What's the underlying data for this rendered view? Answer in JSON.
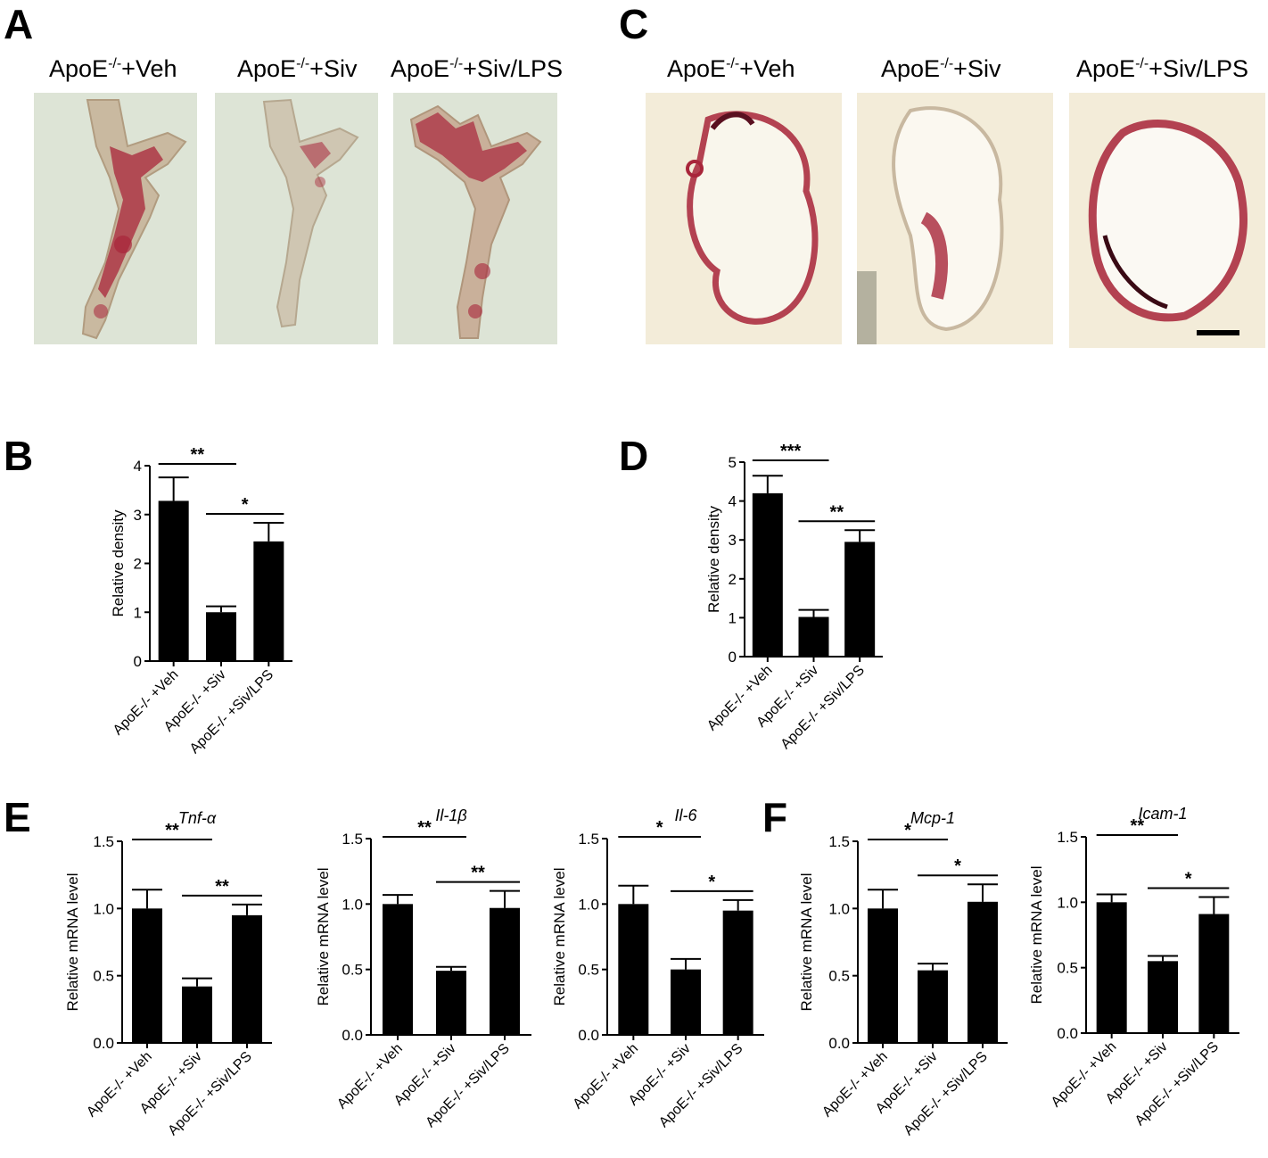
{
  "panel_letters": {
    "A": "A",
    "B": "B",
    "C": "C",
    "D": "D",
    "E": "E",
    "F": "F"
  },
  "image_labels": {
    "prefix": "ApoE",
    "superscript": "-/-",
    "veh": "+Veh",
    "siv": "+Siv",
    "siv_lps": "+Siv/LPS"
  },
  "colors": {
    "bar": "#000000",
    "axis": "#000000",
    "stain": "#a8253a",
    "scale_bar": "#000000"
  },
  "chart_data": [
    {
      "id": "B",
      "type": "bar",
      "title": "",
      "ylabel": "Relative density",
      "ylim": [
        0,
        4
      ],
      "yticks": [
        "0",
        "1",
        "2",
        "3",
        "4"
      ],
      "categories": [
        "ApoE-/- +Veh",
        "ApoE-/- +Siv",
        "ApoE-/- +Siv/LPS"
      ],
      "values": [
        3.28,
        1.0,
        2.45
      ],
      "errors": [
        0.48,
        0.12,
        0.38
      ],
      "significance": [
        {
          "from": 0,
          "to": 1,
          "label": "**"
        },
        {
          "from": 1,
          "to": 2,
          "label": "*"
        }
      ]
    },
    {
      "id": "D",
      "type": "bar",
      "title": "",
      "ylabel": "Relative density",
      "ylim": [
        0,
        5
      ],
      "yticks": [
        "0",
        "1",
        "2",
        "3",
        "4",
        "5"
      ],
      "categories": [
        "ApoE-/- +Veh",
        "ApoE-/- +Siv",
        "ApoE-/- +Siv/LPS"
      ],
      "values": [
        4.2,
        1.02,
        2.95
      ],
      "errors": [
        0.45,
        0.18,
        0.3
      ],
      "significance": [
        {
          "from": 0,
          "to": 1,
          "label": "***"
        },
        {
          "from": 1,
          "to": 2,
          "label": "**"
        }
      ]
    },
    {
      "id": "E1",
      "type": "bar",
      "title": "Tnf-α",
      "ylabel": "Relative mRNA level",
      "ylim": [
        0,
        1.5
      ],
      "yticks": [
        "0.0",
        "0.5",
        "1.0",
        "1.5"
      ],
      "categories": [
        "ApoE-/- +Veh",
        "ApoE-/- +Siv",
        "ApoE-/- +Siv/LPS"
      ],
      "values": [
        1.0,
        0.42,
        0.95
      ],
      "errors": [
        0.14,
        0.06,
        0.08
      ],
      "significance": [
        {
          "from": 0,
          "to": 1,
          "label": "**"
        },
        {
          "from": 1,
          "to": 2,
          "label": "**"
        }
      ]
    },
    {
      "id": "E2",
      "type": "bar",
      "title": "Il-1β",
      "ylabel": "Relative mRNA level",
      "ylim": [
        0,
        1.5
      ],
      "yticks": [
        "0.0",
        "0.5",
        "1.0",
        "1.5"
      ],
      "categories": [
        "ApoE-/- +Veh",
        "ApoE-/- +Siv",
        "ApoE-/- +Siv/LPS"
      ],
      "values": [
        1.0,
        0.49,
        0.97
      ],
      "errors": [
        0.07,
        0.03,
        0.13
      ],
      "significance": [
        {
          "from": 0,
          "to": 1,
          "label": "**"
        },
        {
          "from": 1,
          "to": 2,
          "label": "**"
        }
      ]
    },
    {
      "id": "E3",
      "type": "bar",
      "title": "Il-6",
      "ylabel": "Relative mRNA level",
      "ylim": [
        0,
        1.5
      ],
      "yticks": [
        "0.0",
        "0.5",
        "1.0",
        "1.5"
      ],
      "categories": [
        "ApoE-/- +Veh",
        "ApoE-/- +Siv",
        "ApoE-/- +Siv/LPS"
      ],
      "values": [
        1.0,
        0.5,
        0.95
      ],
      "errors": [
        0.14,
        0.08,
        0.08
      ],
      "significance": [
        {
          "from": 0,
          "to": 1,
          "label": "*"
        },
        {
          "from": 1,
          "to": 2,
          "label": "*"
        }
      ]
    },
    {
      "id": "F1",
      "type": "bar",
      "title": "Mcp-1",
      "ylabel": "Relative mRNA level",
      "ylim": [
        0,
        1.5
      ],
      "yticks": [
        "0.0",
        "0.5",
        "1.0",
        "1.5"
      ],
      "categories": [
        "ApoE-/- +Veh",
        "ApoE-/- +Siv",
        "ApoE-/- +Siv/LPS"
      ],
      "values": [
        1.0,
        0.54,
        1.05
      ],
      "errors": [
        0.14,
        0.05,
        0.13
      ],
      "significance": [
        {
          "from": 0,
          "to": 1,
          "label": "*"
        },
        {
          "from": 1,
          "to": 2,
          "label": "*"
        }
      ]
    },
    {
      "id": "F2",
      "type": "bar",
      "title": "Icam-1",
      "ylabel": "Relative mRNA level",
      "ylim": [
        0,
        1.5
      ],
      "yticks": [
        "0.0",
        "0.5",
        "1.0",
        "1.5"
      ],
      "categories": [
        "ApoE-/- +Veh",
        "ApoE-/- +Siv",
        "ApoE-/- +Siv/LPS"
      ],
      "values": [
        1.0,
        0.55,
        0.91
      ],
      "errors": [
        0.06,
        0.04,
        0.13
      ],
      "significance": [
        {
          "from": 0,
          "to": 1,
          "label": "**"
        },
        {
          "from": 1,
          "to": 2,
          "label": "*"
        }
      ]
    }
  ]
}
